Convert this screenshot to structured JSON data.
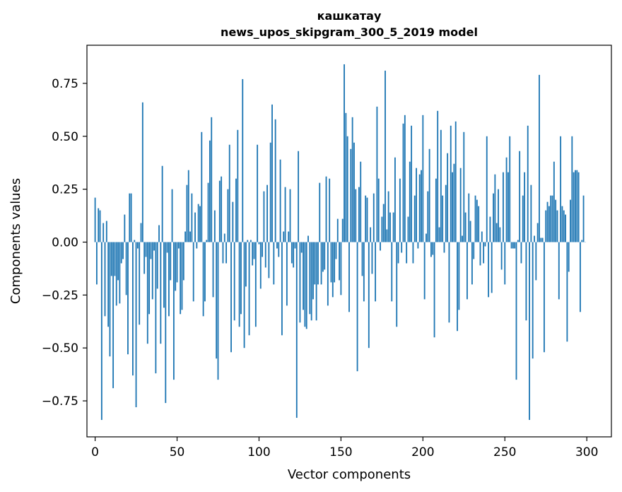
{
  "chart_data": {
    "type": "bar",
    "title": "кашкатау",
    "subtitle": "news_upos_skipgram_300_5_2019 model",
    "xlabel": "Vector components",
    "ylabel": "Components values",
    "xlim": [
      -5,
      315
    ],
    "ylim": [
      -0.92,
      0.93
    ],
    "xticks": [
      0,
      50,
      100,
      150,
      200,
      250,
      300
    ],
    "yticks": [
      -0.75,
      -0.5,
      -0.25,
      0.0,
      0.25,
      0.5,
      0.75
    ],
    "ytick_labels": [
      "−0.75",
      "−0.50",
      "−0.25",
      "0.00",
      "0.25",
      "0.50",
      "0.75"
    ],
    "xtick_labels": [
      "0",
      "50",
      "100",
      "150",
      "200",
      "250",
      "300"
    ],
    "bar_color": "#1f77b4",
    "values": [
      0.21,
      -0.2,
      0.16,
      0.15,
      -0.84,
      0.09,
      -0.35,
      0.1,
      -0.4,
      -0.54,
      -0.16,
      -0.69,
      -0.16,
      -0.3,
      -0.18,
      -0.29,
      -0.1,
      -0.08,
      0.13,
      -0.25,
      -0.53,
      0.23,
      0.23,
      -0.63,
      0.01,
      -0.78,
      -0.03,
      -0.39,
      0.09,
      0.66,
      -0.15,
      -0.07,
      -0.48,
      -0.34,
      -0.08,
      -0.27,
      -0.04,
      -0.62,
      -0.22,
      0.08,
      -0.48,
      0.36,
      -0.31,
      -0.76,
      -0.05,
      -0.35,
      -0.18,
      0.25,
      -0.65,
      -0.23,
      -0.19,
      -0.03,
      -0.34,
      -0.32,
      -0.18,
      0.05,
      0.27,
      0.34,
      0.05,
      0.23,
      -0.28,
      0.14,
      -0.03,
      0.18,
      0.17,
      0.52,
      -0.35,
      -0.28,
      0.01,
      0.28,
      0.48,
      0.59,
      -0.26,
      0.15,
      -0.55,
      -0.65,
      0.29,
      0.31,
      -0.1,
      0.04,
      -0.1,
      0.25,
      0.46,
      -0.52,
      0.19,
      -0.37,
      0.3,
      0.53,
      -0.4,
      -0.34,
      0.77,
      -0.5,
      -0.21,
      0.01,
      -0.44,
      0.01,
      -0.11,
      -0.08,
      -0.4,
      0.46,
      -0.01,
      -0.22,
      -0.07,
      0.24,
      -0.12,
      0.27,
      -0.17,
      0.47,
      0.65,
      -0.2,
      0.58,
      -0.03,
      -0.07,
      0.39,
      -0.44,
      0.05,
      0.26,
      -0.3,
      0.05,
      0.25,
      -0.1,
      -0.12,
      -0.03,
      -0.83,
      0.43,
      -0.38,
      -0.05,
      -0.32,
      -0.4,
      -0.41,
      0.03,
      -0.34,
      -0.37,
      -0.27,
      -0.2,
      -0.37,
      -0.2,
      0.28,
      -0.2,
      -0.14,
      -0.13,
      0.31,
      -0.3,
      0.3,
      -0.19,
      -0.26,
      -0.19,
      -0.08,
      0.11,
      -0.18,
      -0.25,
      0.11,
      0.84,
      0.61,
      0.5,
      -0.33,
      0.44,
      0.59,
      0.47,
      0.25,
      -0.61,
      0.26,
      0.38,
      -0.16,
      -0.28,
      0.22,
      0.21,
      -0.5,
      0.07,
      -0.15,
      0.23,
      -0.28,
      0.64,
      0.3,
      -0.04,
      0.12,
      0.18,
      0.81,
      0.06,
      0.24,
      0.14,
      -0.28,
      0.14,
      0.4,
      -0.4,
      -0.1,
      0.3,
      -0.05,
      0.56,
      0.6,
      -0.1,
      0.12,
      0.38,
      0.55,
      -0.1,
      0.22,
      0.35,
      -0.03,
      0.32,
      0.34,
      0.6,
      -0.27,
      0.04,
      0.24,
      0.44,
      -0.07,
      -0.06,
      -0.45,
      0.3,
      0.62,
      0.07,
      0.53,
      0.22,
      -0.05,
      0.27,
      0.42,
      -0.38,
      0.55,
      0.33,
      0.37,
      0.57,
      -0.42,
      -0.32,
      0.35,
      0.03,
      0.52,
      0.14,
      -0.27,
      0.23,
      0.1,
      -0.2,
      -0.08,
      0.22,
      0.2,
      0.17,
      -0.11,
      0.05,
      -0.1,
      -0.02,
      0.5,
      -0.26,
      0.12,
      -0.24,
      0.23,
      0.32,
      0.09,
      0.25,
      0.07,
      -0.13,
      0.33,
      -0.2,
      0.4,
      0.33,
      0.5,
      -0.03,
      -0.03,
      -0.03,
      -0.65,
      0.01,
      0.43,
      -0.1,
      0.22,
      0.33,
      -0.37,
      0.55,
      -0.84,
      0.27,
      -0.55,
      0.03,
      -0.18,
      0.09,
      0.79,
      0.02,
      0.02,
      -0.52,
      0.15,
      0.19,
      0.17,
      0.22,
      0.22,
      0.38,
      0.2,
      0.15,
      -0.27,
      0.5,
      0.17,
      0.15,
      0.13,
      -0.47,
      -0.14,
      0.2,
      0.5,
      0.33,
      0.34,
      0.34,
      0.33,
      -0.33,
      0.01,
      0.22,
      0.0
    ]
  }
}
